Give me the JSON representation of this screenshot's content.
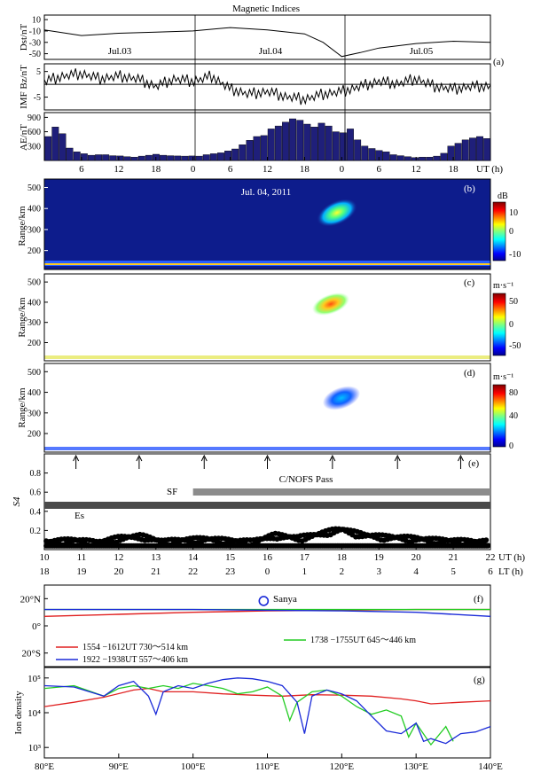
{
  "title": "Magnetic Indices",
  "colors": {
    "navy": "#1a1a6e",
    "bar": "#1f1f7a",
    "gray": "#8c8c8c",
    "dark": "#4a4a4a",
    "red": "#e02020",
    "green": "#22cc22",
    "blue": "#1a2ad8"
  },
  "panels": {
    "a": {
      "label": "(a)",
      "xlabel": "UT (h)",
      "xticks": [
        "6",
        "12",
        "18",
        "0",
        "6",
        "12",
        "18",
        "0",
        "6",
        "12",
        "18"
      ],
      "days": [
        "Jul.03",
        "Jul.04",
        "Jul.05"
      ],
      "dst": {
        "ylabel": "Dst/nT",
        "yticks": [
          "10",
          "-10",
          "-30",
          "-50"
        ]
      },
      "imf": {
        "ylabel": "IMF Bz/nT",
        "yticks": [
          "5",
          "-5"
        ]
      },
      "ae": {
        "ylabel": "AE/nT",
        "yticks": [
          "900",
          "600",
          "300"
        ]
      }
    },
    "b": {
      "label": "(b)",
      "ylabel": "Range/km",
      "annotation": "Jul. 04, 2011",
      "cb_unit": "dB",
      "cb_ticks": [
        "10",
        "0",
        "-10"
      ]
    },
    "c": {
      "label": "(c)",
      "ylabel": "Range/km",
      "cb_unit": "m·s⁻¹",
      "cb_ticks": [
        "50",
        "0",
        "-50"
      ]
    },
    "d": {
      "label": "(d)",
      "ylabel": "Range/km",
      "cb_unit": "m·s⁻¹",
      "cb_ticks": [
        "80",
        "40",
        "0"
      ]
    },
    "e": {
      "label": "(e)",
      "ylabel": "S4",
      "yticks": [
        "0.8",
        "0.6",
        "0.4",
        "0.2"
      ],
      "sf": "SF",
      "es": "Es",
      "pass": "C/NOFS Pass",
      "ut": [
        "10",
        "11",
        "12",
        "13",
        "14",
        "15",
        "16",
        "17",
        "18",
        "19",
        "20",
        "21",
        "22"
      ],
      "lt": [
        "18",
        "19",
        "20",
        "21",
        "22",
        "23",
        "0",
        "1",
        "2",
        "3",
        "4",
        "5",
        "6"
      ],
      "ut_label": "UT (h)",
      "lt_label": "LT (h)"
    },
    "f": {
      "label": "(f)",
      "yticks": [
        "20°N",
        "0°",
        "20°S"
      ],
      "station": "Sanya",
      "legend": [
        {
          "text": "1554 −1612UT  730～514  km",
          "color": "red"
        },
        {
          "text": "1738 −1755UT  645～446 km",
          "color": "green"
        },
        {
          "text": "1922 −1938UT  557～406 km",
          "color": "blue"
        }
      ]
    },
    "g": {
      "label": "(g)",
      "ylabel": "Ion density",
      "yticks": [
        "10⁵",
        "10⁴",
        "10³"
      ],
      "xticks": [
        "80°E",
        "90°E",
        "100°E",
        "110°E",
        "120°E",
        "130°E",
        "140°E"
      ]
    }
  },
  "chart_data": [
    {
      "type": "line",
      "panel": "a",
      "name": "Dst",
      "unit": "nT",
      "x": [
        0,
        6,
        12,
        18,
        24,
        30,
        36,
        42,
        45,
        48,
        51,
        54,
        60,
        66,
        72
      ],
      "y": [
        -8,
        -18,
        -14,
        -12,
        -10,
        -4,
        -8,
        -15,
        -30,
        -55,
        -48,
        -40,
        -32,
        -28,
        -30
      ],
      "xlim": [
        0,
        72
      ],
      "ylim": [
        -60,
        18
      ]
    },
    {
      "type": "line",
      "panel": "a",
      "name": "IMF Bz",
      "unit": "nT",
      "x": [
        0,
        3,
        6,
        9,
        12,
        15,
        18,
        21,
        24,
        27,
        30,
        33,
        36,
        39,
        42,
        45,
        48,
        51,
        54,
        57,
        60,
        63,
        66,
        69,
        72
      ],
      "y": [
        1,
        3,
        4,
        2,
        3,
        2,
        -1,
        2,
        1,
        3,
        -2,
        -4,
        -3,
        -5,
        -6,
        -4,
        -3,
        -1,
        1,
        0,
        2,
        -1,
        -2,
        -1,
        -1
      ],
      "xlim": [
        0,
        72
      ],
      "ylim": [
        -10,
        8
      ]
    },
    {
      "type": "bar",
      "panel": "a",
      "name": "AE",
      "unit": "nT",
      "values": [
        500,
        700,
        560,
        260,
        180,
        140,
        110,
        120,
        120,
        100,
        95,
        80,
        70,
        90,
        110,
        130,
        110,
        100,
        95,
        90,
        95,
        90,
        120,
        140,
        160,
        200,
        240,
        330,
        420,
        500,
        520,
        660,
        720,
        800,
        870,
        840,
        760,
        700,
        780,
        720,
        600,
        580,
        660,
        430,
        300,
        250,
        210,
        180,
        120,
        100,
        80,
        60,
        70,
        70,
        90,
        150,
        300,
        360,
        430,
        470,
        500,
        460
      ],
      "ylim": [
        0,
        1000
      ]
    },
    {
      "type": "heatmap",
      "panel": "b",
      "name": "SNR",
      "unit": "dB",
      "xlim": [
        10,
        22
      ],
      "ylim": [
        110,
        540
      ],
      "clim": [
        -15,
        15
      ]
    },
    {
      "type": "heatmap",
      "panel": "c",
      "name": "Doppler velocity",
      "unit": "m·s⁻¹",
      "xlim": [
        10,
        22
      ],
      "ylim": [
        110,
        540
      ],
      "clim": [
        -70,
        70
      ]
    },
    {
      "type": "heatmap",
      "panel": "d",
      "name": "Spectral width",
      "unit": "m·s⁻¹",
      "xlim": [
        10,
        22
      ],
      "ylim": [
        110,
        540
      ],
      "clim": [
        0,
        90
      ]
    },
    {
      "type": "scatter",
      "panel": "e",
      "name": "S4",
      "xlim": [
        10,
        22
      ],
      "ylim": [
        0,
        1
      ],
      "x": [
        10.2,
        10.8,
        11.4,
        12.0,
        12.6,
        13.2,
        13.8,
        14.4,
        15.0,
        15.6,
        16.2,
        16.8,
        17.4,
        17.8,
        18.0,
        18.6,
        19.2,
        19.8,
        20.4,
        21.0,
        21.6
      ],
      "y": [
        0.1,
        0.12,
        0.09,
        0.14,
        0.16,
        0.1,
        0.12,
        0.13,
        0.11,
        0.1,
        0.17,
        0.14,
        0.18,
        0.22,
        0.23,
        0.17,
        0.15,
        0.14,
        0.12,
        0.11,
        0.1
      ],
      "sf_range": [
        14,
        22
      ],
      "es_range": [
        10,
        22
      ],
      "arrows": [
        10.85,
        12.55,
        14.3,
        16.0,
        17.75,
        19.5,
        21.2
      ]
    },
    {
      "type": "line",
      "panel": "f",
      "series": [
        {
          "name": "1554 −1612UT",
          "color": "red",
          "x": [
            80,
            90,
            100,
            110,
            120,
            130,
            140
          ],
          "y": [
            7,
            8.5,
            10,
            11,
            11.5,
            12,
            12
          ]
        },
        {
          "name": "1738 −1755UT",
          "color": "green",
          "x": [
            80,
            90,
            100,
            110,
            120,
            130,
            140
          ],
          "y": [
            12,
            12,
            12,
            12,
            12,
            12,
            12
          ]
        },
        {
          "name": "1922 −1938UT",
          "color": "blue",
          "x": [
            80,
            90,
            100,
            110,
            120,
            130,
            140
          ],
          "y": [
            12,
            12,
            12,
            11.5,
            11,
            10,
            7
          ]
        }
      ],
      "station": {
        "name": "Sanya",
        "lon": 109.5,
        "lat": 18.3
      },
      "xlim": [
        80,
        140
      ],
      "ylim": [
        -30,
        30
      ]
    },
    {
      "type": "line",
      "panel": "g",
      "name": "Ion density",
      "xlim": [
        80,
        140
      ],
      "ylim": [
        500,
        200000
      ],
      "yscale": "log",
      "series": [
        {
          "name": "1554 −1612UT",
          "color": "red",
          "x": [
            80,
            84,
            88,
            92,
            94,
            96,
            100,
            104,
            108,
            112,
            116,
            120,
            124,
            128,
            130,
            132,
            136,
            140
          ],
          "y": [
            15000,
            20000,
            28000,
            45000,
            50000,
            40000,
            40000,
            35000,
            32000,
            30000,
            33000,
            32000,
            30000,
            25000,
            22000,
            18000,
            20000,
            22000
          ]
        },
        {
          "name": "1738 −1755UT",
          "color": "green",
          "x": [
            80,
            84,
            88,
            90,
            92,
            94,
            96,
            98,
            100,
            102,
            104,
            106,
            108,
            110,
            112,
            113,
            114,
            116,
            118,
            120,
            122,
            124,
            126,
            128,
            129,
            130,
            132,
            134,
            135
          ],
          "y": [
            50000,
            60000,
            30000,
            50000,
            60000,
            50000,
            60000,
            50000,
            70000,
            60000,
            50000,
            35000,
            40000,
            55000,
            30000,
            6000,
            20000,
            40000,
            45000,
            30000,
            15000,
            9000,
            12000,
            8000,
            2000,
            5000,
            1200,
            4000,
            1500
          ]
        },
        {
          "name": "1922 −1938UT",
          "color": "blue",
          "x": [
            80,
            84,
            88,
            90,
            92,
            94,
            95,
            96,
            98,
            100,
            102,
            104,
            106,
            108,
            110,
            112,
            114,
            115,
            116,
            118,
            120,
            122,
            124,
            126,
            128,
            130,
            131,
            132,
            134,
            136,
            138,
            140
          ],
          "y": [
            60000,
            55000,
            30000,
            60000,
            80000,
            30000,
            9000,
            40000,
            60000,
            50000,
            70000,
            90000,
            100000,
            95000,
            80000,
            60000,
            20000,
            2500,
            30000,
            45000,
            35000,
            22000,
            8000,
            3000,
            2500,
            5000,
            1500,
            1800,
            1300,
            2500,
            2800,
            4000
          ]
        }
      ]
    }
  ]
}
